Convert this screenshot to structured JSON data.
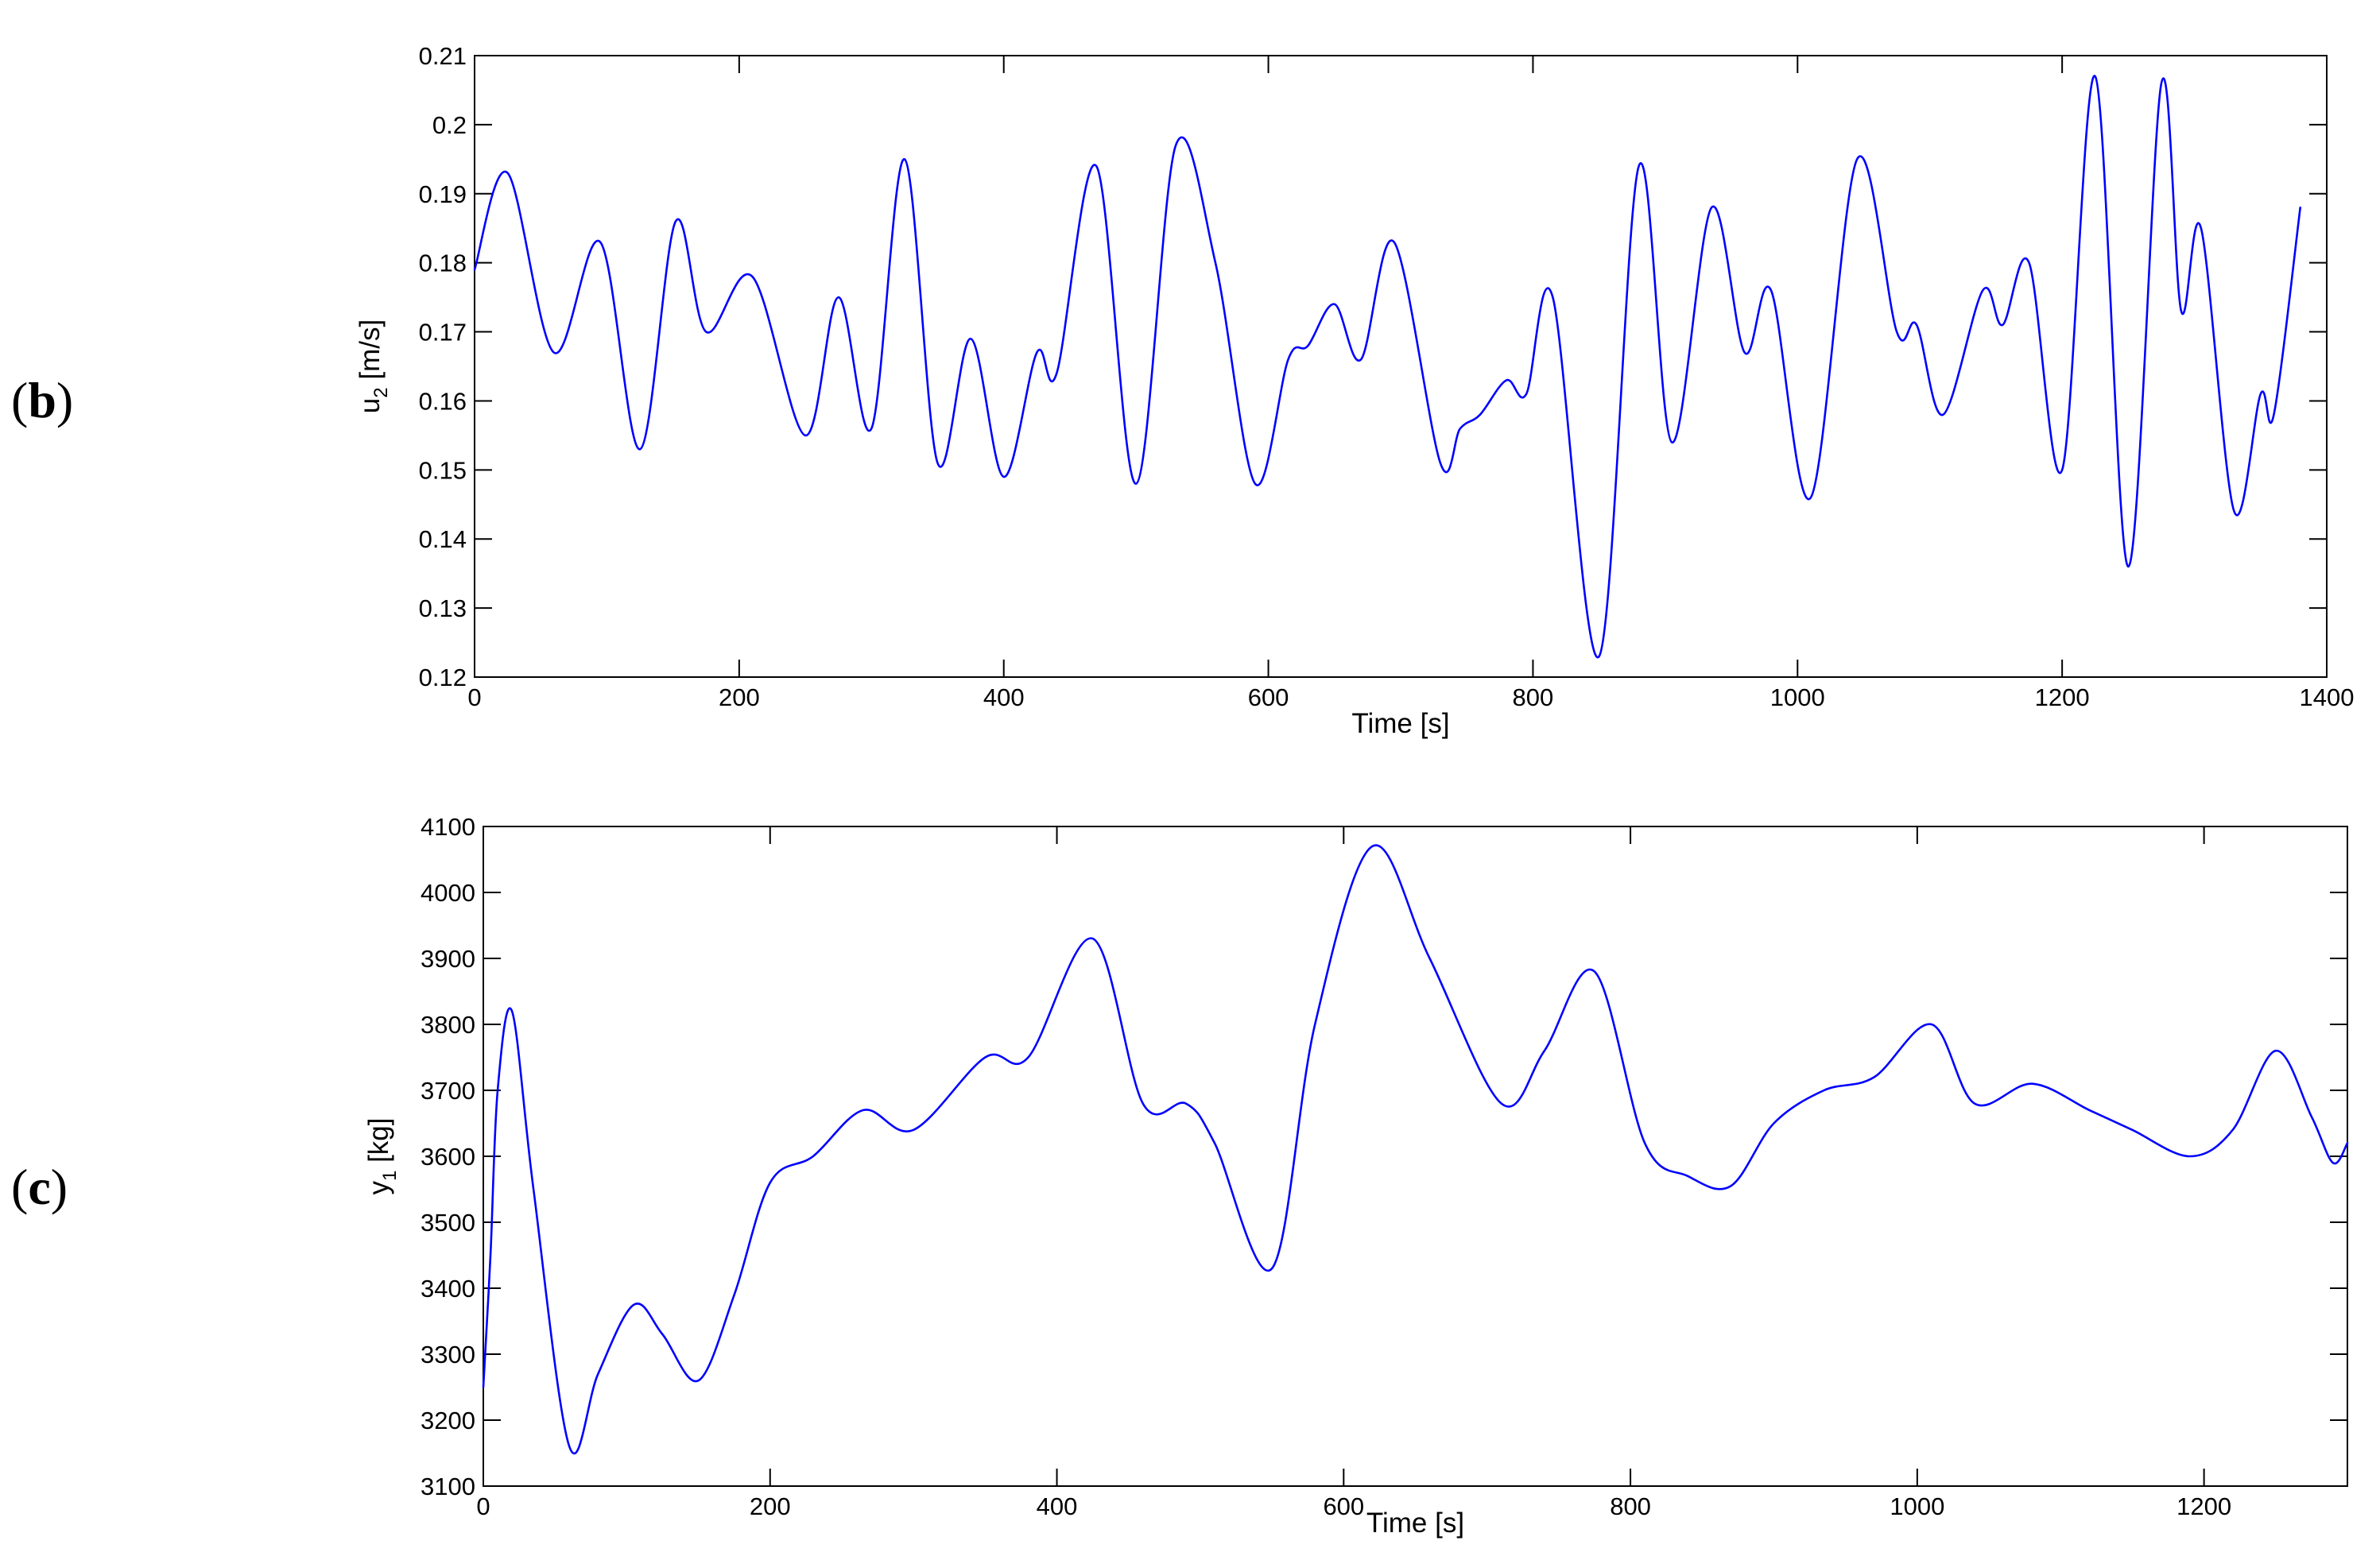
{
  "panels": [
    {
      "label": "b"
    },
    {
      "label": "c"
    }
  ],
  "colors": {
    "series": "#0000ff",
    "axes": "#000000",
    "background": "#ffffff"
  },
  "chart_data": [
    {
      "type": "line",
      "xlabel": "Time [s]",
      "ylabel": {
        "main": "u",
        "subscript": "2",
        "unit": " [m/s]"
      },
      "xlim": [
        0,
        1400
      ],
      "ylim": [
        0.12,
        0.21
      ],
      "xticks": [
        0,
        200,
        400,
        600,
        800,
        1000,
        1200,
        1400
      ],
      "yticks": [
        0.12,
        0.13,
        0.14,
        0.15,
        0.16,
        0.17,
        0.18,
        0.19,
        0.2,
        0.21
      ],
      "xtick_labels": [
        "0",
        "200",
        "400",
        "600",
        "800",
        "1000",
        "1200",
        "1400"
      ],
      "ytick_labels": [
        "0.12",
        "0.13",
        "0.14",
        "0.15",
        "0.16",
        "0.17",
        "0.18",
        "0.19",
        "0.2",
        "0.21"
      ],
      "grid": false,
      "x": [
        0,
        25,
        60,
        95,
        125,
        152,
        175,
        210,
        250,
        275,
        300,
        325,
        350,
        375,
        400,
        425,
        440,
        470,
        500,
        530,
        560,
        590,
        615,
        630,
        650,
        670,
        695,
        730,
        745,
        760,
        780,
        795,
        815,
        850,
        880,
        905,
        935,
        960,
        980,
        1010,
        1045,
        1075,
        1090,
        1110,
        1140,
        1155,
        1175,
        1200,
        1225,
        1250,
        1275,
        1290,
        1305,
        1330,
        1350,
        1360,
        1380
      ],
      "series": [
        {
          "values": [
            0.179,
            0.193,
            0.167,
            0.183,
            0.153,
            0.186,
            0.17,
            0.178,
            0.155,
            0.175,
            0.156,
            0.195,
            0.151,
            0.169,
            0.149,
            0.167,
            0.164,
            0.194,
            0.148,
            0.197,
            0.18,
            0.148,
            0.166,
            0.168,
            0.174,
            0.166,
            0.183,
            0.151,
            0.156,
            0.158,
            0.163,
            0.161,
            0.175,
            0.123,
            0.194,
            0.154,
            0.188,
            0.167,
            0.176,
            0.146,
            0.195,
            0.17,
            0.171,
            0.158,
            0.176,
            0.171,
            0.18,
            0.15,
            0.207,
            0.136,
            0.206,
            0.173,
            0.185,
            0.144,
            0.161,
            0.158,
            0.188
          ]
        }
      ]
    },
    {
      "type": "line",
      "xlabel": "Time [s]",
      "ylabel": {
        "main": "y",
        "subscript": "1",
        "unit": " [kg]"
      },
      "xlim": [
        0,
        1300
      ],
      "ylim": [
        3100,
        4100
      ],
      "xticks": [
        0,
        200,
        400,
        600,
        800,
        1000,
        1200
      ],
      "yticks": [
        3100,
        3200,
        3300,
        3400,
        3500,
        3600,
        3700,
        3800,
        3900,
        4000,
        4100
      ],
      "xtick_labels": [
        "0",
        "200",
        "400",
        "600",
        "800",
        "1000",
        "1200"
      ],
      "ytick_labels": [
        "3100",
        "3200",
        "3300",
        "3400",
        "3500",
        "3600",
        "3700",
        "3800",
        "3900",
        "4000",
        "4100"
      ],
      "grid": false,
      "x": [
        0,
        5,
        10,
        20,
        35,
        60,
        80,
        105,
        125,
        150,
        175,
        200,
        230,
        265,
        300,
        350,
        380,
        425,
        460,
        490,
        510,
        550,
        580,
        620,
        660,
        710,
        740,
        775,
        810,
        840,
        870,
        900,
        935,
        970,
        1010,
        1040,
        1080,
        1120,
        1150,
        1190,
        1220,
        1250,
        1275,
        1290,
        1300
      ],
      "series": [
        {
          "values": [
            3250,
            3450,
            3700,
            3820,
            3550,
            3160,
            3270,
            3375,
            3330,
            3260,
            3390,
            3560,
            3600,
            3670,
            3640,
            3750,
            3750,
            3930,
            3680,
            3680,
            3620,
            3430,
            3800,
            4070,
            3900,
            3680,
            3760,
            3880,
            3620,
            3570,
            3555,
            3650,
            3700,
            3720,
            3800,
            3680,
            3710,
            3670,
            3640,
            3600,
            3640,
            3760,
            3660,
            3590,
            3620
          ]
        }
      ]
    }
  ]
}
